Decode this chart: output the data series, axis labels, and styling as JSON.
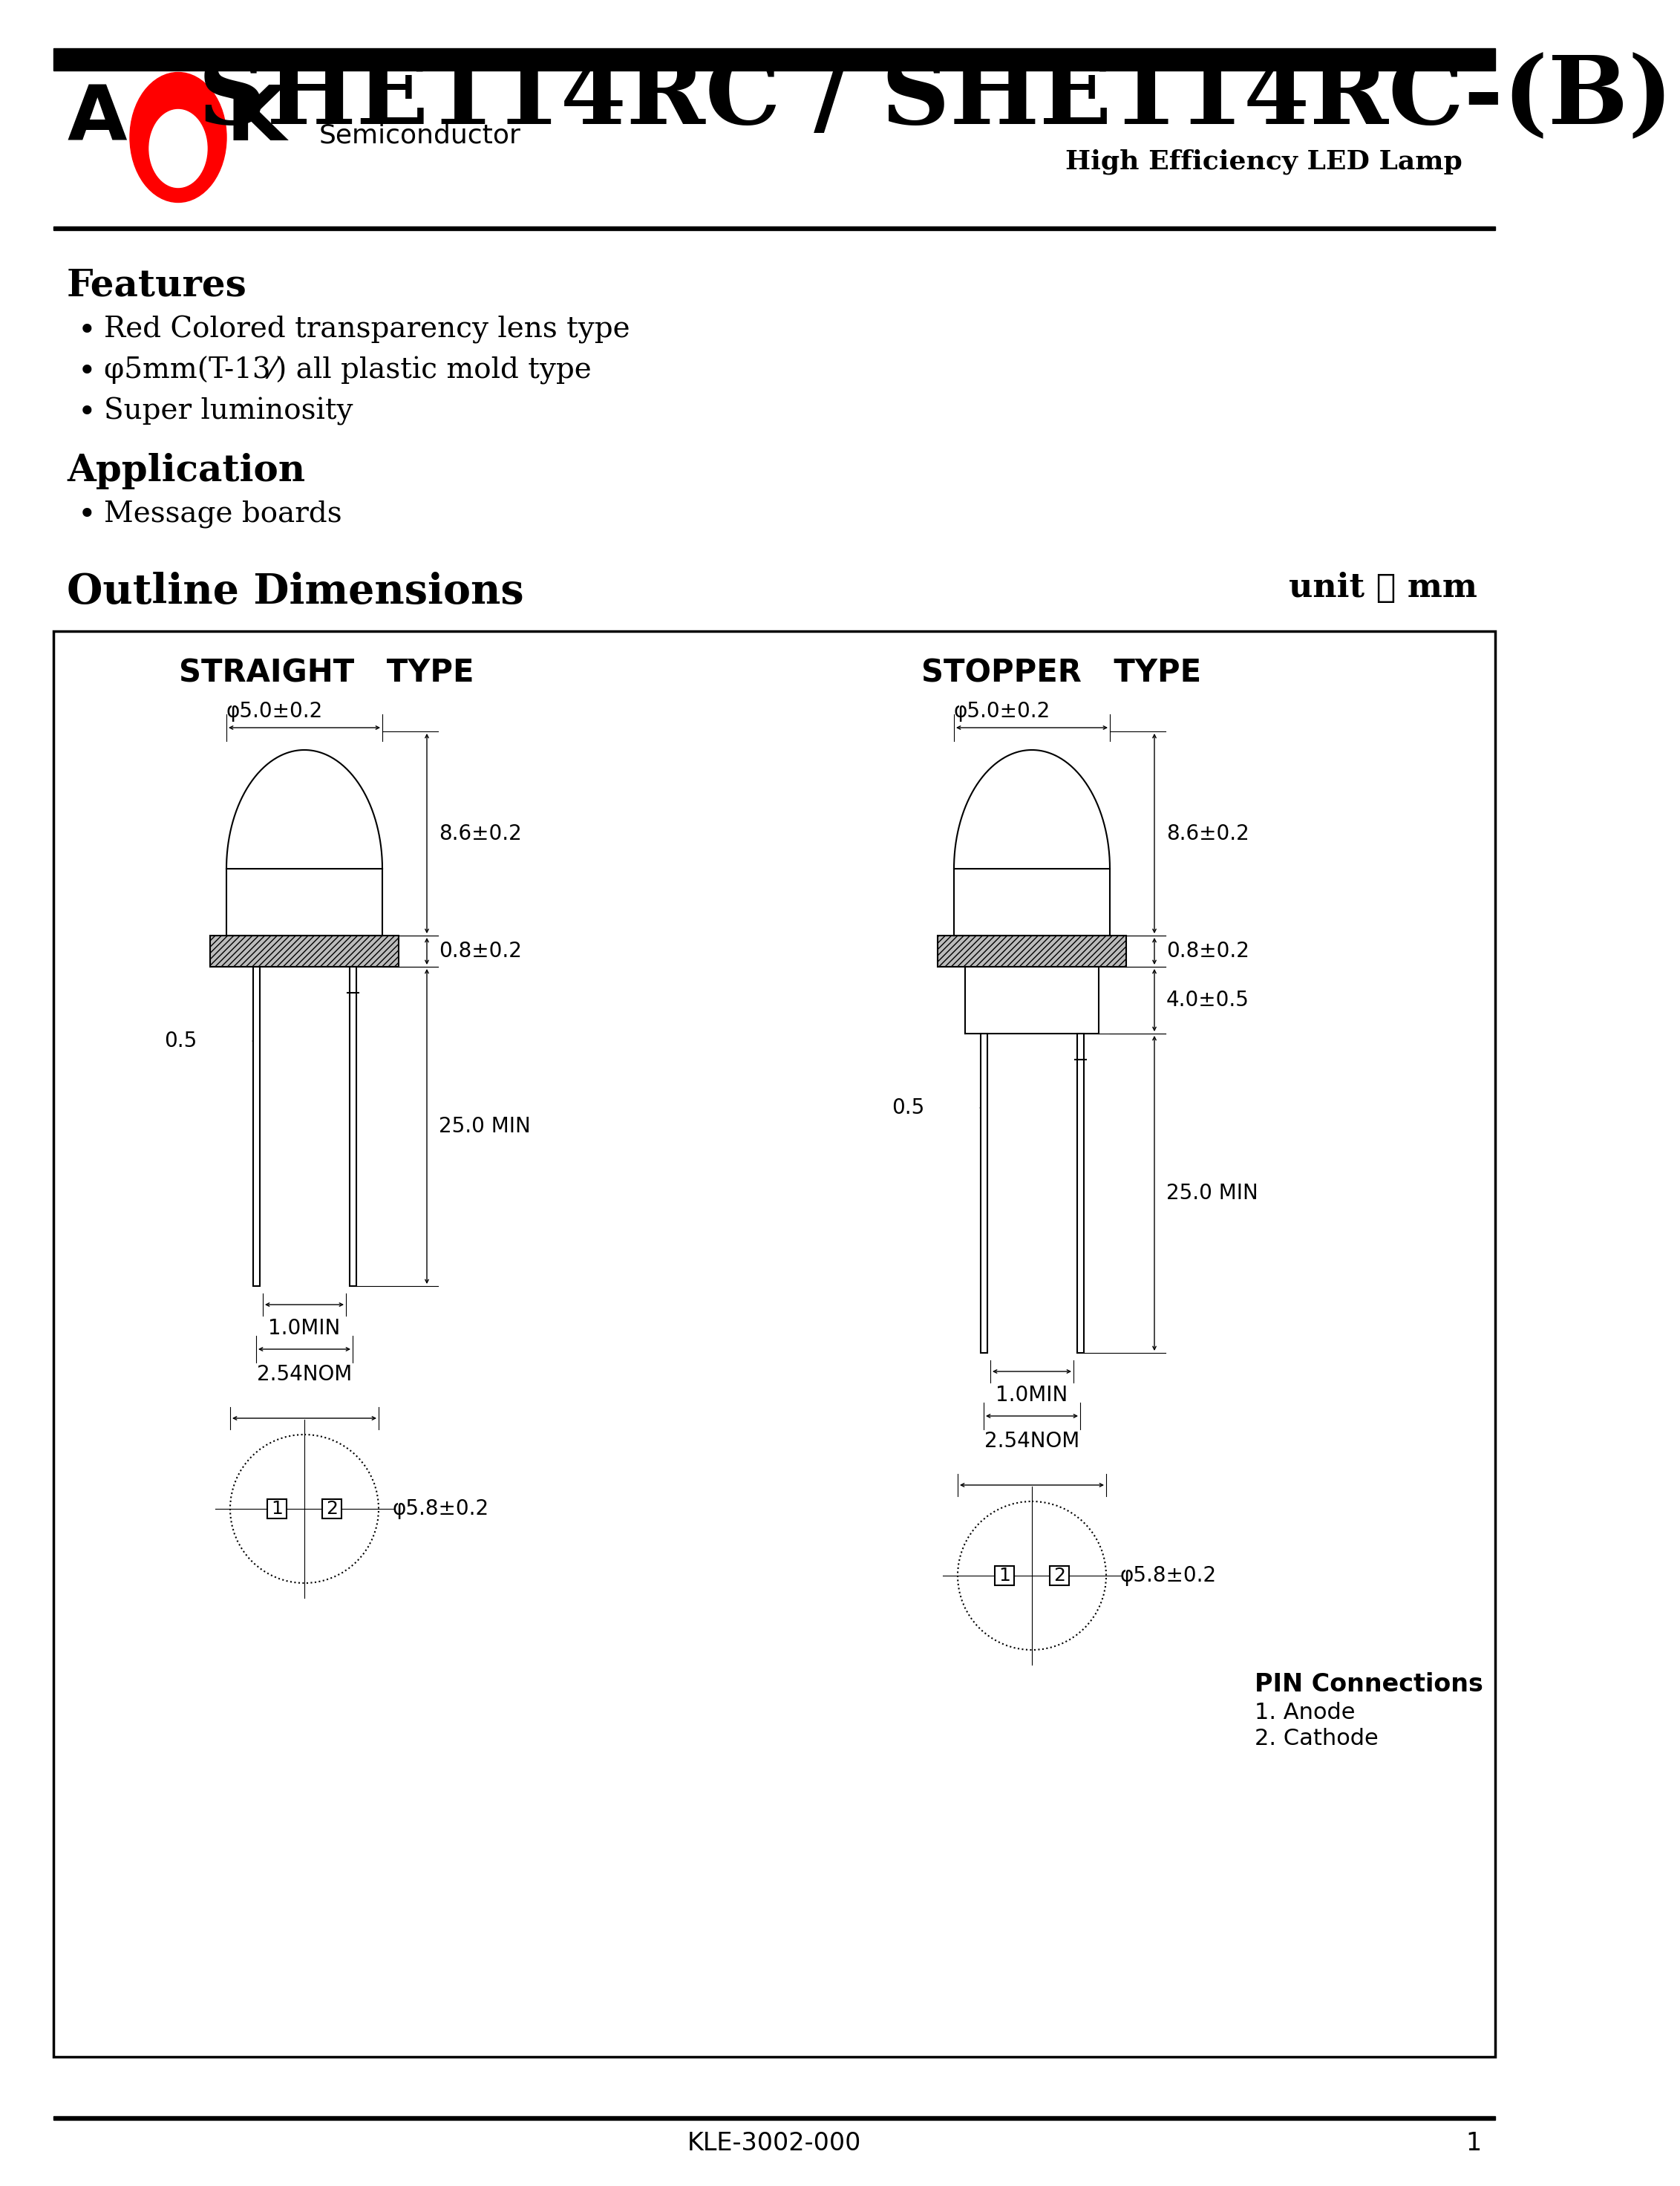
{
  "title": "SHE114RC / SHE114RC-(B)",
  "subtitle": "High Efficiency LED Lamp",
  "features_title": "Features",
  "features": [
    "Red Colored transparency lens type",
    "φ5mm(T-13⁄) all plastic mold type",
    "Super luminosity"
  ],
  "application_title": "Application",
  "application": [
    "Message boards"
  ],
  "outline_title": "Outline Dimensions",
  "unit_label": "unit ： mm",
  "straight_type": "STRAIGHT   TYPE",
  "stopper_type": "STOPPER   TYPE",
  "footer": "KLE-3002-000",
  "page": "1",
  "pin_connections_title": "PIN Connections",
  "pin_connections": [
    "1. Anode",
    "2. Cathode"
  ],
  "bg_color": "#ffffff",
  "text_color": "#000000",
  "bar_color": "#000000"
}
